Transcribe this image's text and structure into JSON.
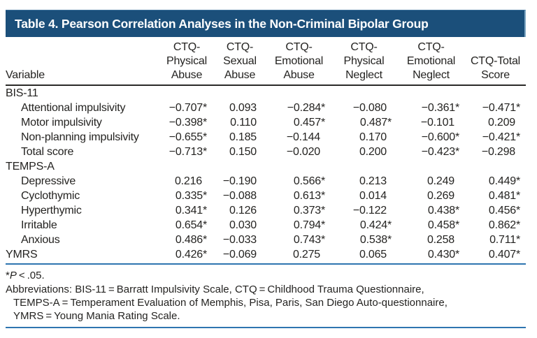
{
  "title": "Table 4. Pearson Correlation Analyses in the Non-Criminal Bipolar Group",
  "colors": {
    "title_bar_bg": "#1b4f7a",
    "title_text": "#ffffff",
    "header_rule": "#2b2a28",
    "blue_rule": "#2e75b0",
    "body_text": "#242321",
    "page_bg": "#ffffff"
  },
  "table": {
    "variable_header": "Variable",
    "column_headers": [
      "CTQ-\nPhysical\nAbuse",
      "CTQ-\nSexual\nAbuse",
      "CTQ-\nEmotional\nAbuse",
      "CTQ-\nPhysical\nNeglect",
      "CTQ-\nEmotional\nNeglect",
      "CTQ-Total\nScore"
    ],
    "rows": [
      {
        "label": "BIS-11",
        "type": "section",
        "values": [
          "",
          "",
          "",
          "",
          "",
          ""
        ]
      },
      {
        "label": "Attentional impulsivity",
        "type": "indent",
        "values": [
          "−0.707*",
          "0.093",
          "−0.284*",
          "−0.080",
          "−0.361*",
          "−0.471*"
        ]
      },
      {
        "label": "Motor impulsivity",
        "type": "indent",
        "values": [
          "−0.398*",
          "0.110",
          "0.457*",
          "0.487*",
          "−0.101",
          "0.209"
        ]
      },
      {
        "label": "Non-planning impulsivity",
        "type": "indent",
        "values": [
          "−0.655*",
          "0.185",
          "−0.144",
          "0.170",
          "−0.600*",
          "−0.421*"
        ]
      },
      {
        "label": "Total score",
        "type": "indent",
        "values": [
          "−0.713*",
          "0.150",
          "−0.020",
          "0.200",
          "−0.423*",
          "−0.298"
        ]
      },
      {
        "label": "TEMPS-A",
        "type": "section",
        "values": [
          "",
          "",
          "",
          "",
          "",
          ""
        ]
      },
      {
        "label": "Depressive",
        "type": "indent",
        "values": [
          "0.216",
          "−0.190",
          "0.566*",
          "0.213",
          "0.249",
          "0.449*"
        ]
      },
      {
        "label": "Cyclothymic",
        "type": "indent",
        "values": [
          "0.335*",
          "−0.088",
          "0.613*",
          "0.014",
          "0.269",
          "0.481*"
        ]
      },
      {
        "label": "Hyperthymic",
        "type": "indent",
        "values": [
          "0.341*",
          "0.126",
          "0.373*",
          "−0.122",
          "0.438*",
          "0.456*"
        ]
      },
      {
        "label": "Irritable",
        "type": "indent",
        "values": [
          "0.654*",
          "0.030",
          "0.794*",
          "0.424*",
          "0.458*",
          "0.862*"
        ]
      },
      {
        "label": "Anxious",
        "type": "indent",
        "values": [
          "0.486*",
          "−0.033",
          "0.743*",
          "0.538*",
          "0.258",
          "0.711*"
        ]
      },
      {
        "label": "YMRS",
        "type": "section",
        "values": [
          "0.426*",
          "−0.069",
          "0.275",
          "0.065",
          "0.430*",
          "0.407*"
        ]
      }
    ]
  },
  "footnotes": {
    "sig_star": "*",
    "sig_p": "P",
    "sig_rest": " < .05.",
    "abbreviations": [
      "Abbreviations: BIS-11 = Barratt Impulsivity Scale, CTQ = Childhood Trauma Questionnaire,",
      "TEMPS-A = Temperament Evaluation of Memphis, Pisa, Paris, San Diego Auto-questionnaire,",
      "YMRS = Young Mania Rating Scale."
    ]
  }
}
